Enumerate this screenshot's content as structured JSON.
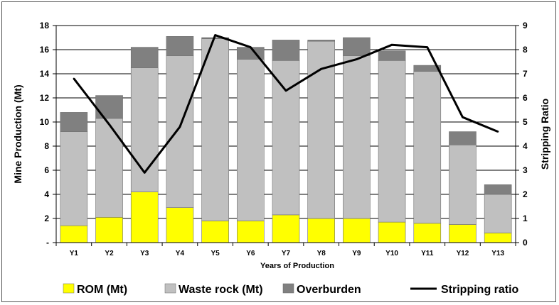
{
  "chart_data": {
    "type": "bar",
    "stacked": true,
    "categories": [
      "Y1",
      "Y2",
      "Y3",
      "Y4",
      "Y5",
      "Y6",
      "Y7",
      "Y8",
      "Y9",
      "Y10",
      "Y11",
      "Y12",
      "Y13"
    ],
    "series": [
      {
        "name": "ROM (Mt)",
        "color": "#ffff00",
        "axis": "left",
        "values": [
          1.4,
          2.1,
          4.2,
          2.9,
          1.8,
          1.8,
          2.3,
          2.0,
          2.0,
          1.7,
          1.6,
          1.5,
          0.8
        ]
      },
      {
        "name": "Waste rock (Mt)",
        "color": "#c0c0c0",
        "axis": "left",
        "values": [
          7.8,
          8.2,
          10.3,
          12.6,
          15.1,
          13.4,
          12.8,
          14.7,
          13.5,
          13.4,
          12.6,
          6.6,
          3.2
        ]
      },
      {
        "name": "Overburden",
        "color": "#808080",
        "axis": "left",
        "values": [
          1.6,
          1.9,
          1.7,
          1.6,
          0.1,
          1.0,
          1.7,
          0.1,
          1.5,
          0.8,
          0.5,
          1.1,
          0.8
        ]
      },
      {
        "name": "Stripping ratio",
        "type": "line",
        "color": "#000000",
        "axis": "right",
        "values": [
          6.8,
          4.9,
          2.9,
          4.8,
          8.6,
          8.1,
          6.3,
          7.2,
          7.6,
          8.2,
          8.1,
          5.2,
          4.6
        ]
      }
    ],
    "xlabel": "Years of Production",
    "ylabel": "Mine Production (Mt)",
    "y2label": "Stripping Ratio",
    "ylim": [
      0,
      18
    ],
    "y2lim": [
      0,
      9
    ],
    "yticks": [
      "-",
      "2",
      "4",
      "6",
      "8",
      "10",
      "12",
      "14",
      "16",
      "18"
    ],
    "y2ticks": [
      "0",
      "1",
      "2",
      "3",
      "4",
      "5",
      "6",
      "7",
      "8",
      "9"
    ],
    "grid": true,
    "legend_position": "bottom"
  }
}
